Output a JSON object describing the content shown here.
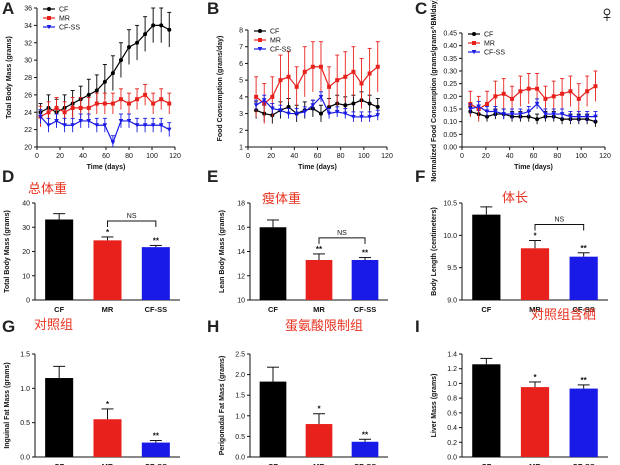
{
  "annotations": {
    "total_weight": "总体重",
    "lean_weight": "瘦体重",
    "body_length": "体长",
    "control": "对照组",
    "methionine_restricted": "蛋氨酸限制组",
    "control_selenium": "对照组含硒",
    "female_symbol": "♀"
  },
  "colors": {
    "CF": "#000000",
    "MR": "#e8211d",
    "CF-SS": "#1a1ae6"
  },
  "chart_data": [
    {
      "id": "A",
      "type": "line",
      "xlabel": "Time (days)",
      "ylabel": "Total Body Mass (grams)",
      "xlim": [
        0,
        120
      ],
      "ylim": [
        20,
        36
      ],
      "xticks": [
        "0",
        "20",
        "40",
        "60",
        "80",
        "100",
        "120"
      ],
      "yticks": [
        "20",
        "22",
        "24",
        "26",
        "28",
        "30",
        "32",
        "34",
        "36"
      ],
      "legend": [
        "CF",
        "MR",
        "CF-SS"
      ],
      "x": [
        3,
        10,
        17,
        24,
        31,
        38,
        45,
        52,
        59,
        66,
        73,
        80,
        87,
        94,
        101,
        108,
        115
      ],
      "series": [
        {
          "name": "CF",
          "values": [
            24.0,
            24.5,
            24.0,
            24.5,
            25.0,
            25.5,
            26.0,
            26.5,
            27.5,
            28.5,
            30.0,
            31.5,
            32.0,
            33.0,
            34.0,
            34.0,
            33.5
          ],
          "err": [
            1.0,
            1.5,
            1.5,
            1.5,
            1.5,
            1.5,
            1.8,
            1.8,
            2.0,
            2.0,
            2.0,
            2.0,
            2.0,
            2.0,
            2.0,
            2.0,
            2.0
          ]
        },
        {
          "name": "MR",
          "values": [
            23.5,
            24.0,
            24.5,
            24.0,
            24.5,
            24.5,
            24.5,
            25.0,
            25.0,
            25.0,
            25.5,
            25.0,
            25.5,
            26.0,
            25.0,
            25.5,
            25.0
          ],
          "err": [
            1.2,
            1.2,
            1.2,
            1.2,
            1.2,
            1.2,
            1.2,
            1.2,
            1.2,
            1.2,
            1.2,
            1.2,
            1.2,
            1.2,
            1.2,
            1.2,
            1.2
          ]
        },
        {
          "name": "CF-SS",
          "values": [
            23.5,
            22.5,
            23.0,
            22.5,
            22.5,
            23.0,
            23.0,
            22.5,
            22.5,
            20.5,
            23.0,
            23.0,
            22.5,
            22.5,
            22.5,
            22.5,
            22.0
          ],
          "err": [
            0.8,
            0.8,
            0.8,
            0.8,
            0.8,
            0.8,
            0.8,
            0.8,
            0.8,
            0.8,
            0.8,
            0.8,
            0.8,
            0.8,
            0.8,
            0.8,
            0.8
          ]
        }
      ]
    },
    {
      "id": "B",
      "type": "line",
      "xlabel": "Time (days)",
      "ylabel": "Food Consumption (grams/day)",
      "xlim": [
        0,
        120
      ],
      "ylim": [
        1,
        8
      ],
      "xticks": [
        "0",
        "20",
        "40",
        "60",
        "80",
        "100",
        "120"
      ],
      "yticks": [
        "1",
        "2",
        "3",
        "4",
        "5",
        "6",
        "7",
        "8"
      ],
      "legend": [
        "CF",
        "MR",
        "CF-SS"
      ],
      "x": [
        7,
        14,
        21,
        28,
        35,
        42,
        49,
        56,
        63,
        70,
        77,
        84,
        91,
        98,
        105,
        112
      ],
      "series": [
        {
          "name": "CF",
          "values": [
            3.2,
            3.0,
            2.9,
            3.2,
            3.4,
            3.0,
            3.2,
            3.3,
            3.0,
            3.4,
            3.6,
            3.5,
            3.6,
            3.8,
            3.6,
            3.4
          ],
          "err": [
            0.5,
            0.5,
            0.5,
            0.5,
            0.5,
            0.5,
            0.5,
            0.5,
            0.5,
            0.5,
            0.5,
            0.5,
            0.5,
            0.5,
            0.5,
            0.5
          ]
        },
        {
          "name": "MR",
          "values": [
            4.0,
            3.6,
            4.0,
            5.0,
            5.2,
            4.6,
            5.5,
            5.8,
            5.8,
            4.6,
            5.0,
            5.2,
            5.5,
            4.8,
            5.4,
            5.8
          ],
          "err": [
            1.2,
            1.2,
            1.2,
            1.5,
            1.5,
            1.2,
            1.5,
            1.5,
            1.5,
            1.2,
            1.5,
            1.5,
            1.5,
            1.5,
            1.5,
            1.5
          ]
        },
        {
          "name": "CF-SS",
          "values": [
            3.5,
            3.8,
            3.3,
            3.2,
            3.0,
            3.0,
            3.1,
            3.5,
            4.0,
            3.0,
            3.1,
            3.0,
            2.8,
            2.8,
            2.8,
            2.9
          ],
          "err": [
            0.3,
            0.3,
            0.3,
            0.3,
            0.3,
            0.3,
            0.3,
            0.3,
            0.3,
            0.3,
            0.3,
            0.3,
            0.3,
            0.3,
            0.3,
            0.3
          ]
        }
      ]
    },
    {
      "id": "C",
      "type": "line",
      "xlabel": "Time (days)",
      "ylabel": "Normalized Food Consumption (grams/grams^BM/day)",
      "xlim": [
        0,
        120
      ],
      "ylim": [
        0.0,
        0.45
      ],
      "xticks": [
        "0",
        "20",
        "40",
        "60",
        "80",
        "100",
        "120"
      ],
      "yticks": [
        "0.00",
        "0.05",
        "0.10",
        "0.15",
        "0.20",
        "0.25",
        "0.30",
        "0.35",
        "0.40",
        "0.45"
      ],
      "legend": [
        "CF",
        "MR",
        "CF-SS"
      ],
      "x": [
        7,
        14,
        21,
        28,
        35,
        42,
        49,
        56,
        63,
        70,
        77,
        84,
        91,
        98,
        105,
        112
      ],
      "series": [
        {
          "name": "CF",
          "values": [
            0.14,
            0.13,
            0.12,
            0.13,
            0.13,
            0.12,
            0.12,
            0.12,
            0.11,
            0.12,
            0.12,
            0.11,
            0.11,
            0.11,
            0.11,
            0.1
          ],
          "err": [
            0.02,
            0.02,
            0.02,
            0.02,
            0.02,
            0.02,
            0.02,
            0.02,
            0.02,
            0.02,
            0.02,
            0.02,
            0.02,
            0.02,
            0.02,
            0.02
          ]
        },
        {
          "name": "MR",
          "values": [
            0.17,
            0.15,
            0.17,
            0.2,
            0.21,
            0.19,
            0.22,
            0.23,
            0.23,
            0.19,
            0.2,
            0.21,
            0.22,
            0.19,
            0.22,
            0.24
          ],
          "err": [
            0.05,
            0.05,
            0.05,
            0.06,
            0.06,
            0.05,
            0.06,
            0.06,
            0.06,
            0.05,
            0.06,
            0.06,
            0.06,
            0.06,
            0.06,
            0.06
          ]
        },
        {
          "name": "CF-SS",
          "values": [
            0.15,
            0.16,
            0.14,
            0.14,
            0.13,
            0.13,
            0.13,
            0.14,
            0.17,
            0.13,
            0.13,
            0.13,
            0.12,
            0.12,
            0.12,
            0.12
          ],
          "err": [
            0.02,
            0.02,
            0.02,
            0.02,
            0.02,
            0.02,
            0.02,
            0.02,
            0.02,
            0.02,
            0.02,
            0.02,
            0.02,
            0.02,
            0.02,
            0.02
          ]
        }
      ]
    },
    {
      "id": "D",
      "type": "bar",
      "ylabel": "Total Body Mass (grams)",
      "categories": [
        "CF",
        "MR",
        "CF-SS"
      ],
      "values": [
        33.2,
        24.6,
        21.8
      ],
      "err": [
        2.4,
        1.4,
        0.7
      ],
      "ylim": [
        0,
        40
      ],
      "yticks": [
        "0",
        "10",
        "20",
        "30",
        "40"
      ],
      "sig": [
        "",
        "*",
        "**"
      ],
      "bracket": "NS"
    },
    {
      "id": "E",
      "type": "bar",
      "ylabel": "Lean Body Mass (grams)",
      "categories": [
        "CF",
        "MR",
        "CF-SS"
      ],
      "values": [
        16.0,
        13.3,
        13.3
      ],
      "err": [
        0.6,
        0.5,
        0.2
      ],
      "ylim": [
        10,
        18
      ],
      "yticks": [
        "10",
        "12",
        "14",
        "16",
        "18"
      ],
      "sig": [
        "",
        "**",
        "**"
      ],
      "bracket": "NS"
    },
    {
      "id": "F",
      "type": "bar",
      "ylabel": "Body Length (centimeters)",
      "categories": [
        "CF",
        "MR",
        "CF-SS"
      ],
      "values": [
        10.32,
        9.8,
        9.67
      ],
      "err": [
        0.12,
        0.12,
        0.06
      ],
      "ylim": [
        9.0,
        10.5
      ],
      "yticks": [
        "9.0",
        "9.5",
        "10.0",
        "10.5"
      ],
      "sig": [
        "",
        "*",
        "**"
      ],
      "bracket": "NS"
    },
    {
      "id": "G",
      "type": "bar",
      "ylabel": "Inguinal Fat Mass (grams)",
      "categories": [
        "CF",
        "MR",
        "CF-SS"
      ],
      "values": [
        1.15,
        0.55,
        0.21
      ],
      "err": [
        0.17,
        0.15,
        0.03
      ],
      "ylim": [
        0.0,
        1.5
      ],
      "yticks": [
        "0.0",
        "0.5",
        "1.0",
        "1.5"
      ],
      "sig": [
        "",
        "*",
        "**"
      ],
      "bracket": ""
    },
    {
      "id": "H",
      "type": "bar",
      "ylabel": "Perigonadal Fat Mass (grams)",
      "categories": [
        "CF",
        "MR",
        "CF-SS"
      ],
      "values": [
        1.83,
        0.8,
        0.37
      ],
      "err": [
        0.35,
        0.25,
        0.06
      ],
      "ylim": [
        0.0,
        2.5
      ],
      "yticks": [
        "0.0",
        "0.5",
        "1.0",
        "1.5",
        "2.0",
        "2.5"
      ],
      "sig": [
        "",
        "*",
        "**"
      ],
      "bracket": ""
    },
    {
      "id": "I",
      "type": "bar",
      "ylabel": "Liver Mass (grams)",
      "categories": [
        "CF",
        "MR",
        "CF-SS"
      ],
      "values": [
        1.26,
        0.95,
        0.93
      ],
      "err": [
        0.08,
        0.07,
        0.05
      ],
      "ylim": [
        0.0,
        1.4
      ],
      "yticks": [
        "0.0",
        "0.2",
        "0.4",
        "0.6",
        "0.8",
        "1.0",
        "1.2",
        "1.4"
      ],
      "sig": [
        "",
        "*",
        "**"
      ],
      "bracket": ""
    }
  ]
}
